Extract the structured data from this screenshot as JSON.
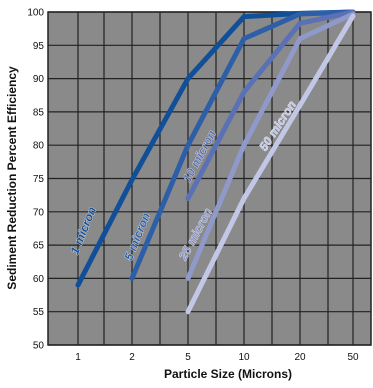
{
  "chart_data": {
    "type": "line",
    "xlabel": "Particle Size (Microns)",
    "ylabel": "Sediment Reduction Percent Efficiency",
    "x_categories": [
      "1",
      "2",
      "5",
      "10",
      "20",
      "50"
    ],
    "yticks": [
      50,
      55,
      60,
      65,
      70,
      75,
      80,
      85,
      90,
      95,
      100
    ],
    "ylim": [
      50,
      100
    ],
    "grid": true,
    "background_color": "#8a8a8a",
    "grid_color": "#222222",
    "series": [
      {
        "name": "1 micron",
        "color": "#124f99",
        "points": [
          {
            "x": "1",
            "y": 59
          },
          {
            "x": "2",
            "y": 74.8
          },
          {
            "x": "5",
            "y": 90
          },
          {
            "x": "10",
            "y": 99.3
          },
          {
            "x": "20",
            "y": 99.8
          },
          {
            "x": "50",
            "y": 100
          }
        ]
      },
      {
        "name": "5 micron",
        "color": "#2c5fa8",
        "points": [
          {
            "x": "2",
            "y": 60
          },
          {
            "x": "5",
            "y": 80
          },
          {
            "x": "10",
            "y": 96
          },
          {
            "x": "20",
            "y": 99.7
          },
          {
            "x": "50",
            "y": 100
          }
        ]
      },
      {
        "name": "10 micron",
        "color": "#5a71b5",
        "points": [
          {
            "x": "5",
            "y": 72
          },
          {
            "x": "10",
            "y": 88
          },
          {
            "x": "20",
            "y": 98.3
          },
          {
            "x": "50",
            "y": 100
          }
        ]
      },
      {
        "name": "25 micron",
        "color": "#8f99ca",
        "points": [
          {
            "x": "5",
            "y": 60
          },
          {
            "x": "10",
            "y": 80
          },
          {
            "x": "20",
            "y": 96
          },
          {
            "x": "50",
            "y": 99.7
          }
        ]
      },
      {
        "name": "50 micron",
        "color": "#c2c7e6",
        "points": [
          {
            "x": "5",
            "y": 55
          },
          {
            "x": "10",
            "y": 72
          },
          {
            "x": "20",
            "y": 86
          },
          {
            "x": "50",
            "y": 99.4
          }
        ]
      }
    ]
  }
}
